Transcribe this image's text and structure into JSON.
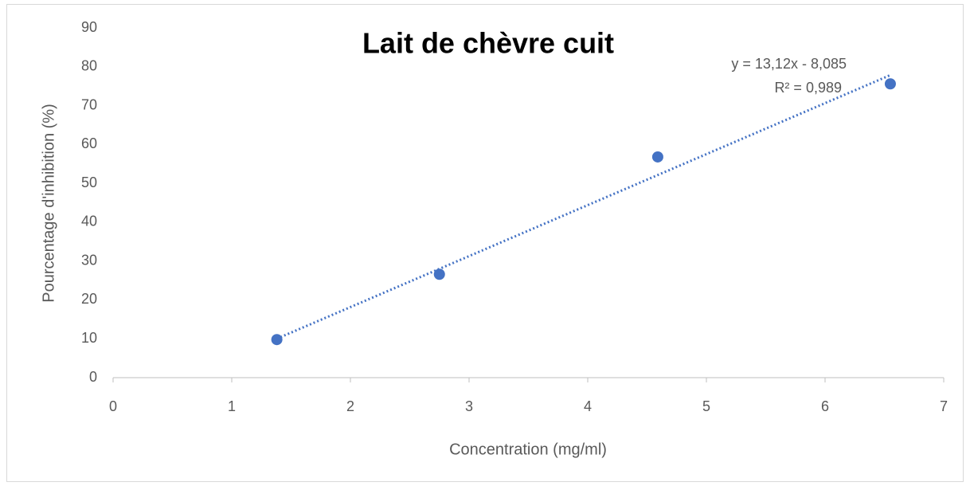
{
  "chart_data": {
    "type": "scatter",
    "title": "Lait de chèvre cuit",
    "xlabel": "Concentration (mg/ml)",
    "ylabel": "Pourcentage  d'inhibition (%)",
    "series": [
      {
        "name": "Lait de chèvre cuit",
        "color": "#4472c4",
        "x": [
          1.38,
          2.75,
          4.59,
          6.55
        ],
        "values": [
          9.8,
          26.6,
          56.8,
          75.6
        ]
      }
    ],
    "trendline": {
      "slope": 13.12,
      "intercept": -8.085,
      "equation": "y = 13,12x - 8,085",
      "r2": "R² = 0,989"
    },
    "xlim": [
      0,
      7
    ],
    "xticks": [
      0,
      1,
      2,
      3,
      4,
      5,
      6,
      7
    ],
    "ylim": [
      0,
      90
    ],
    "yticks": [
      0,
      10,
      20,
      30,
      40,
      50,
      60,
      70,
      80,
      90
    ]
  }
}
